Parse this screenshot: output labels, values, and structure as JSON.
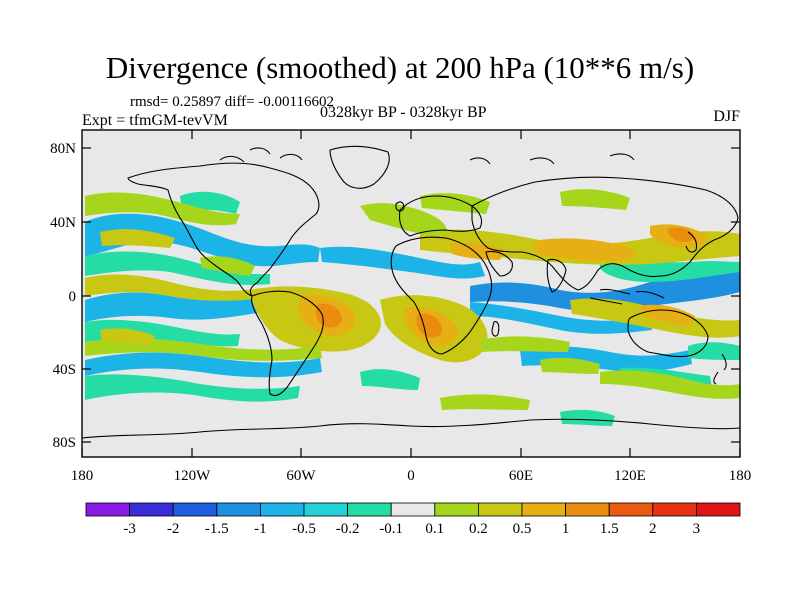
{
  "title": "Divergence (smoothed) at 200 hPa (10**6 m/s)",
  "stats_line": "rmsd= 0.25897 diff= -0.00116602",
  "expt_line": "Expt = tfmGM-tevVM",
  "period": "0328kyr BP - 0328kyr BP",
  "season": "DJF",
  "lat_ticks": [
    "80N",
    "40N",
    "0",
    "40S",
    "80S"
  ],
  "lon_ticks": [
    "180",
    "120W",
    "60W",
    "0",
    "60E",
    "120E",
    "180"
  ],
  "colorbar": {
    "labels": [
      "-3",
      "-2",
      "-1.5",
      "-1",
      "-0.5",
      "-0.2",
      "-0.1",
      "0.1",
      "0.2",
      "0.5",
      "1",
      "1.5",
      "2",
      "3"
    ],
    "colors": [
      "#8a1ae6",
      "#3a2cd8",
      "#1e5fe0",
      "#1f8fe0",
      "#1cb4e6",
      "#22d2d6",
      "#25dca5",
      "#e8e8e8",
      "#a6d61c",
      "#c8c814",
      "#e6b014",
      "#ea8c10",
      "#ea5a10",
      "#e63214",
      "#e01414"
    ]
  },
  "map": {
    "background": "#e8e8e8",
    "positive_light": "#a6d61c",
    "positive_mid": "#c8c814",
    "positive_strong": "#e6b014",
    "positive_max": "#ea8c10",
    "negative_light": "#25dca5",
    "negative_mid": "#1cb4e6",
    "negative_strong": "#1f8fe0"
  }
}
